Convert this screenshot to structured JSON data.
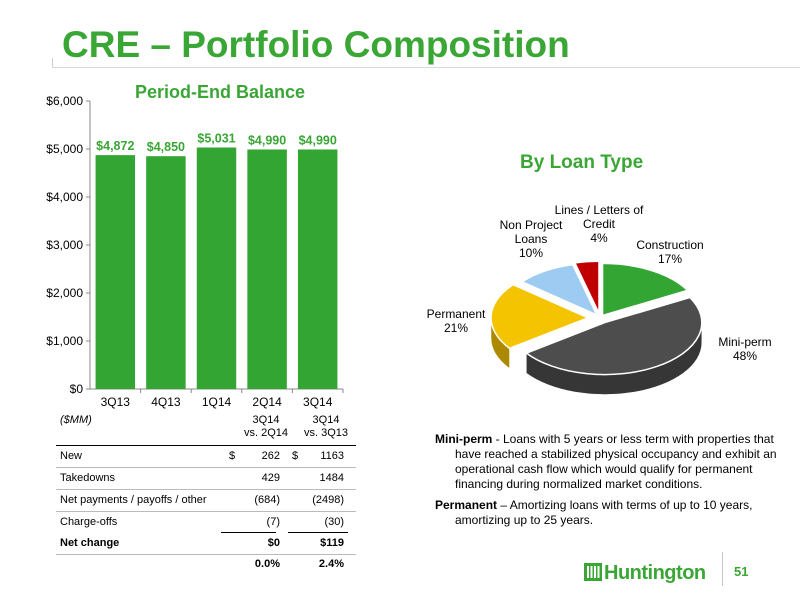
{
  "slide": {
    "title": "CRE – Portfolio Composition",
    "page_number": "51",
    "logo_text": "Huntington"
  },
  "bar_chart": {
    "subtitle": "Period-End Balance"
  },
  "pie_chart": {
    "subtitle": "By Loan Type"
  },
  "chart_data": [
    {
      "type": "bar",
      "title": "Period-End Balance",
      "categories": [
        "3Q13",
        "4Q13",
        "1Q14",
        "2Q14",
        "3Q14"
      ],
      "values": [
        4872,
        4850,
        5031,
        4990,
        4990
      ],
      "data_labels": [
        "$4,872",
        "$4,850",
        "$5,031",
        "$4,990",
        "$4,990"
      ],
      "yticks": [
        "$0",
        "$1,000",
        "$2,000",
        "$3,000",
        "$4,000",
        "$5,000",
        "$6,000"
      ],
      "ylim": [
        0,
        6000
      ],
      "color": "#33a532",
      "label_color": "#3aa635",
      "grid": false
    },
    {
      "type": "pie",
      "title": "By Loan Type",
      "slices": [
        {
          "name": "Construction",
          "value": 17,
          "label": "17%",
          "color": "#33a532"
        },
        {
          "name": "Mini-perm",
          "value": 48,
          "label": "48%",
          "color": "#4d4d4d"
        },
        {
          "name": "Permanent",
          "value": 21,
          "label": "21%",
          "color": "#f5c400"
        },
        {
          "name": "Non Project Loans",
          "value": 10,
          "label": "10%",
          "color": "#9ecbf2"
        },
        {
          "name": "Lines / Letters of Credit",
          "value": 4,
          "label": "4%",
          "color": "#c00000"
        }
      ]
    }
  ],
  "table": {
    "unit_label": "($MM)",
    "col1_header_line1": "3Q14",
    "col1_header_line2": "vs. 2Q14",
    "col2_header_line1": "3Q14",
    "col2_header_line2": "vs. 3Q13",
    "rows": [
      {
        "label": "New",
        "c1_prefix": "$",
        "c1": "262",
        "c2_prefix": "$",
        "c2": "1163"
      },
      {
        "label": "Takedowns",
        "c1_prefix": "",
        "c1": "429",
        "c2_prefix": "",
        "c2": "1484"
      },
      {
        "label": "Net payments / payoffs / other",
        "c1_prefix": "",
        "c1": "(684)",
        "c2_prefix": "",
        "c2": "(2498)"
      },
      {
        "label": "Charge-offs",
        "c1_prefix": "",
        "c1": "(7)",
        "c2_prefix": "",
        "c2": "(30)"
      }
    ],
    "total": {
      "label": "Net change",
      "c1": "$0",
      "c2": "$119"
    },
    "pct": {
      "c1": "0.0%",
      "c2": "2.4%"
    }
  },
  "notes": {
    "miniperm_term": "Mini-perm",
    "miniperm_text": " - Loans with 5 years or less term with properties that have reached a stabilized physical occupancy and exhibit an operational cash flow which would qualify for permanent financing during normalized market conditions.",
    "permanent_term": "Permanent",
    "permanent_text": " – Amortizing loans with terms of up to 10 years, amortizing up to 25 years."
  }
}
